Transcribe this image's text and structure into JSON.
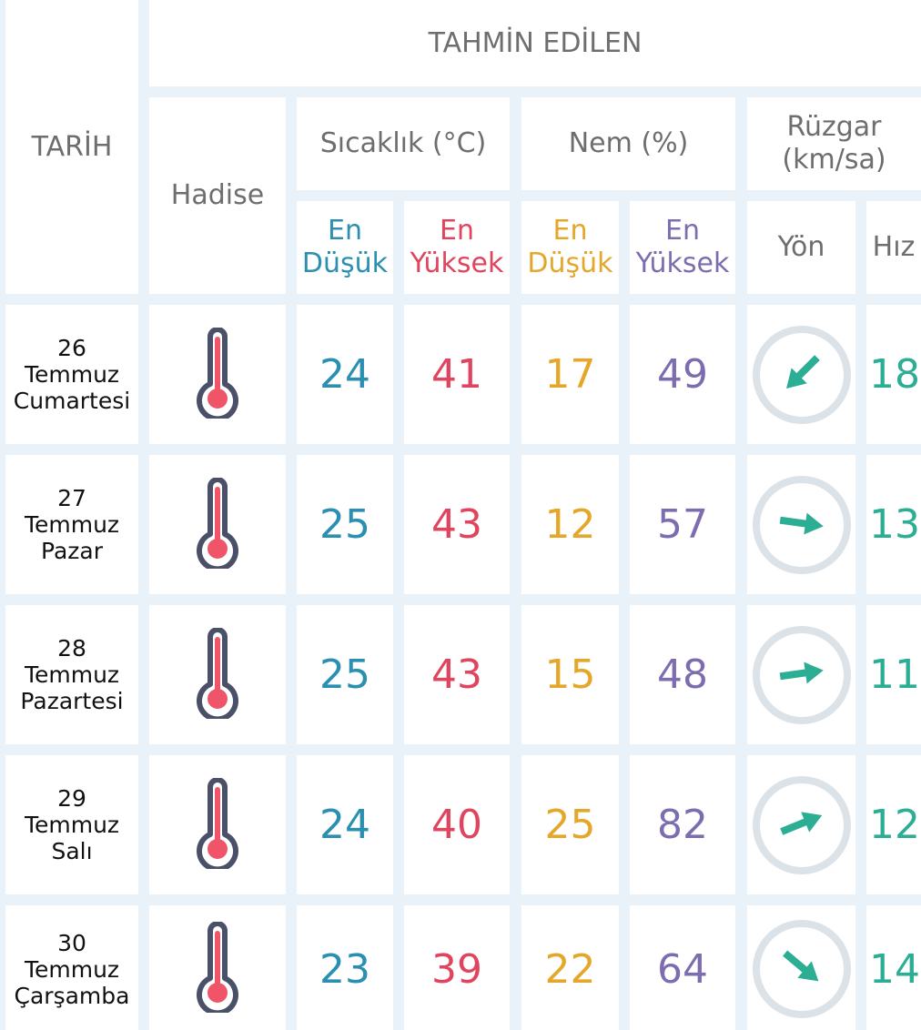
{
  "header": {
    "tarih": "TARİH",
    "tahmin": "TAHMİN EDİLEN",
    "hadise": "Hadise",
    "sicaklik": "Sıcaklık (°C)",
    "nem": "Nem (%)",
    "ruzgar_1": "Rüzgar",
    "ruzgar_2": "(km/sa)",
    "en": "En",
    "dusuk": "Düşük",
    "yuksek": "Yüksek",
    "yon": "Yön",
    "hiz": "Hız"
  },
  "colors": {
    "min_temp": "#2a8fb0",
    "max_temp": "#e0445e",
    "min_hum": "#e5a72a",
    "max_hum": "#7d6db0",
    "wind": "#2bae93"
  },
  "rows": [
    {
      "day": "26",
      "month": "Temmuz",
      "weekday": "Cumartesi",
      "icon": "thermometer-icon",
      "temp_min": "24",
      "temp_max": "41",
      "hum_min": "17",
      "hum_max": "49",
      "wind_dir_deg": 135,
      "wind_speed": "18"
    },
    {
      "day": "27",
      "month": "Temmuz",
      "weekday": "Pazar",
      "icon": "thermometer-icon",
      "temp_min": "25",
      "temp_max": "43",
      "hum_min": "12",
      "hum_max": "57",
      "wind_dir_deg": 8,
      "wind_speed": "13"
    },
    {
      "day": "28",
      "month": "Temmuz",
      "weekday": "Pazartesi",
      "icon": "thermometer-icon",
      "temp_min": "25",
      "temp_max": "43",
      "hum_min": "15",
      "hum_max": "48",
      "wind_dir_deg": -8,
      "wind_speed": "11"
    },
    {
      "day": "29",
      "month": "Temmuz",
      "weekday": "Salı",
      "icon": "thermometer-icon",
      "temp_min": "24",
      "temp_max": "40",
      "hum_min": "25",
      "hum_max": "82",
      "wind_dir_deg": -22,
      "wind_speed": "12"
    },
    {
      "day": "30",
      "month": "Temmuz",
      "weekday": "Çarşamba",
      "icon": "thermometer-icon",
      "temp_min": "23",
      "temp_max": "39",
      "hum_min": "22",
      "hum_max": "64",
      "wind_dir_deg": 40,
      "wind_speed": "14"
    }
  ]
}
